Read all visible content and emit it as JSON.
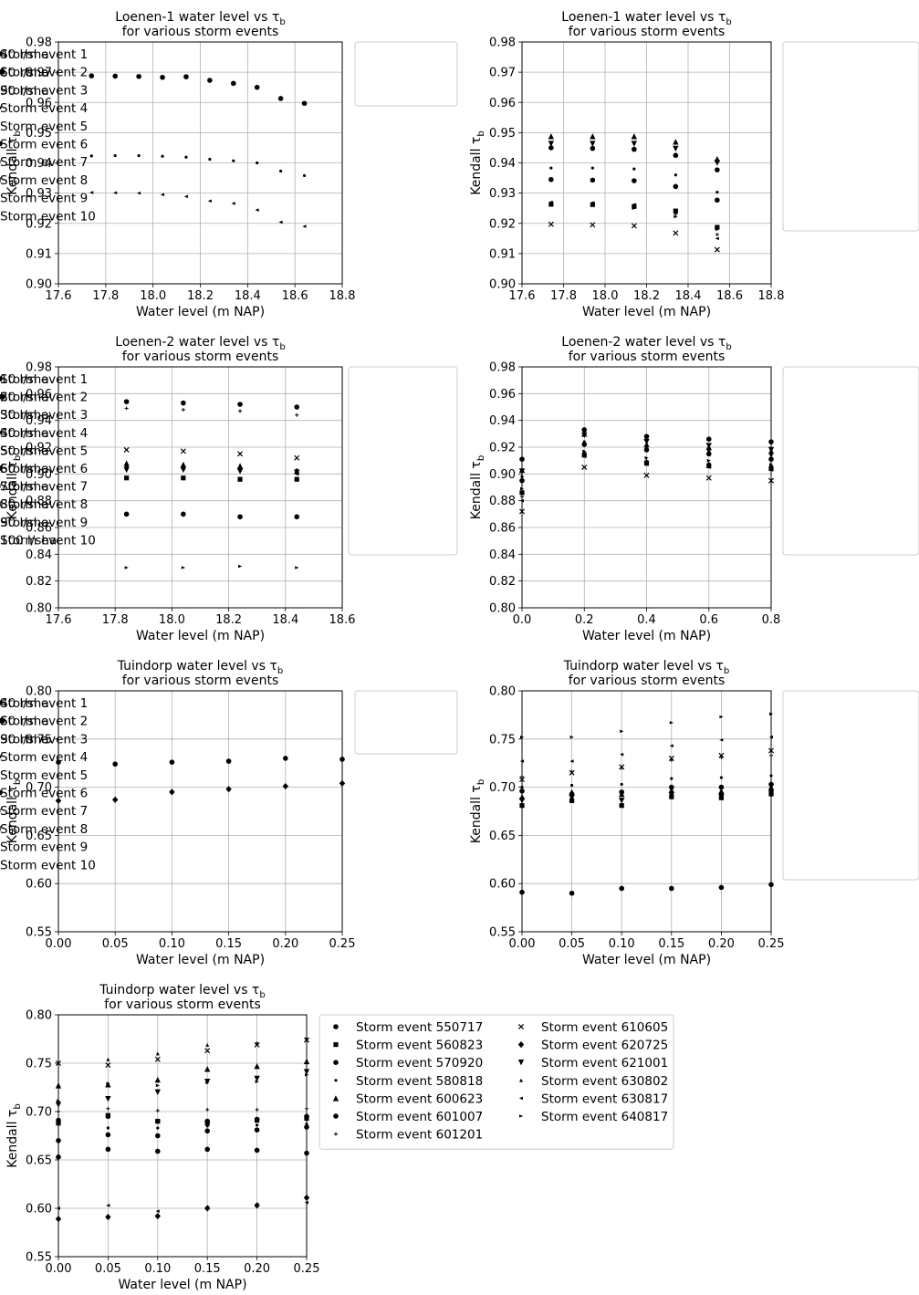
{
  "chart_data": [
    {
      "type": "scatter",
      "title": "Loenen-1 water level vs τ_b",
      "subtitle": "for various storm events",
      "xlabel": "Water level (m NAP)",
      "ylabel": "Kendall τ_b",
      "xlim": [
        17.6,
        18.8
      ],
      "ylim": [
        0.9,
        0.98
      ],
      "xticks": [
        "17.6",
        "17.8",
        "18.0",
        "18.2",
        "18.4",
        "18.6",
        "18.8"
      ],
      "yticks": [
        "0.90",
        "0.91",
        "0.92",
        "0.93",
        "0.94",
        "0.95",
        "0.96",
        "0.97",
        "0.98"
      ],
      "grid": true,
      "legend": "right",
      "series": [
        {
          "name": "40 l/sha",
          "marker": "point",
          "x": [
            17.74,
            17.84,
            17.94,
            18.04,
            18.14,
            18.24,
            18.34,
            18.44,
            18.54,
            18.64
          ],
          "y": [
            0.9423,
            0.9424,
            0.9424,
            0.9422,
            0.9419,
            0.9412,
            0.9407,
            0.94,
            0.9373,
            0.9358
          ]
        },
        {
          "name": "60 l/sha",
          "marker": "circle",
          "x": [
            17.74,
            17.84,
            17.94,
            18.04,
            18.14,
            18.24,
            18.34,
            18.44,
            18.54,
            18.64
          ],
          "y": [
            0.9688,
            0.9687,
            0.9686,
            0.9683,
            0.9685,
            0.9673,
            0.9663,
            0.965,
            0.9613,
            0.9597
          ]
        },
        {
          "name": "90 l/sha",
          "marker": "tri-left",
          "x": [
            17.74,
            17.84,
            17.94,
            18.04,
            18.14,
            18.24,
            18.34,
            18.44,
            18.54,
            18.64
          ],
          "y": [
            0.9302,
            0.9301,
            0.93,
            0.9295,
            0.9289,
            0.9274,
            0.9266,
            0.9244,
            0.9204,
            0.919
          ]
        }
      ]
    },
    {
      "type": "scatter",
      "title": "Loenen-1 water level vs τ_b",
      "subtitle": "for various storm events",
      "xlabel": "Water level (m NAP)",
      "ylabel": "Kendall τ_b",
      "xlim": [
        17.6,
        18.8
      ],
      "ylim": [
        0.9,
        0.98
      ],
      "xticks": [
        "17.6",
        "17.8",
        "18.0",
        "18.2",
        "18.4",
        "18.6",
        "18.8"
      ],
      "yticks": [
        "0.90",
        "0.91",
        "0.92",
        "0.93",
        "0.94",
        "0.95",
        "0.96",
        "0.97",
        "0.98"
      ],
      "grid": true,
      "legend": "right",
      "x": [
        17.74,
        17.94,
        18.14,
        18.34,
        18.54
      ],
      "series": [
        {
          "name": "Storm event 1",
          "marker": "circle",
          "y": [
            0.945,
            0.9448,
            0.9445,
            0.9425,
            0.9377
          ]
        },
        {
          "name": "Storm event 2",
          "marker": "square",
          "y": [
            0.9263,
            0.9262,
            0.9256,
            0.9241,
            0.9187
          ]
        },
        {
          "name": "Storm event 3",
          "marker": "tri-down",
          "y": [
            0.9463,
            0.9463,
            0.9463,
            0.9447,
            0.94
          ]
        },
        {
          "name": "Storm event 4",
          "marker": "point",
          "y": [
            0.9383,
            0.9383,
            0.938,
            0.936,
            0.9303
          ]
        },
        {
          "name": "Storm event 5",
          "marker": "tri-up",
          "y": [
            0.9488,
            0.9488,
            0.9488,
            0.947,
            0.9413
          ]
        },
        {
          "name": "Storm event 6",
          "marker": "circle",
          "y": [
            0.9345,
            0.9343,
            0.9341,
            0.9322,
            0.9277
          ]
        },
        {
          "name": "Storm event 7",
          "marker": "plus",
          "y": [
            0.9268,
            0.9266,
            0.926,
            0.923,
            0.9163
          ]
        },
        {
          "name": "Storm event 8",
          "marker": "x",
          "y": [
            0.9197,
            0.9195,
            0.9192,
            0.9168,
            0.9113
          ]
        },
        {
          "name": "Storm event 9",
          "marker": "tri-left",
          "y": [
            0.927,
            0.9268,
            0.9262,
            0.9238,
            0.915
          ]
        },
        {
          "name": "Storm event 10",
          "marker": "tri-right",
          "y": [
            0.9262,
            0.9262,
            0.925,
            0.9222,
            0.918
          ]
        }
      ]
    },
    {
      "type": "scatter",
      "title": "Loenen-2 water level vs τ_b",
      "subtitle": "for various storm events",
      "xlabel": "Water level (m NAP)",
      "ylabel": "Kendall τ_b",
      "xlim": [
        17.6,
        18.6
      ],
      "ylim": [
        0.8,
        0.98
      ],
      "xticks": [
        "17.6",
        "17.8",
        "18.0",
        "18.2",
        "18.4",
        "18.6"
      ],
      "yticks": [
        "0.80",
        "0.82",
        "0.84",
        "0.86",
        "0.88",
        "0.90",
        "0.92",
        "0.94",
        "0.96",
        "0.98"
      ],
      "grid": true,
      "legend": "right",
      "x": [
        17.84,
        18.04,
        18.24,
        18.44
      ],
      "series": [
        {
          "name": "10 l/sha",
          "marker": "circle",
          "y": [
            0.954,
            0.953,
            0.952,
            0.95
          ]
        },
        {
          "name": "20 l/sha",
          "marker": "square",
          "y": [
            0.897,
            0.897,
            0.896,
            0.896
          ]
        },
        {
          "name": "30 l/sha",
          "marker": "tri-down",
          "y": [
            0.903,
            0.903,
            0.902,
            0.901
          ]
        },
        {
          "name": "40 l/sha",
          "marker": "point",
          "y": [
            0.906,
            0.906,
            0.905,
            0.903
          ]
        },
        {
          "name": "50 l/sha",
          "marker": "tri-up",
          "y": [
            0.908,
            0.907,
            0.906,
            0.902
          ]
        },
        {
          "name": "60 l/sha",
          "marker": "circle",
          "y": [
            0.87,
            0.87,
            0.868,
            0.868
          ]
        },
        {
          "name": "70 l/sha",
          "marker": "plus",
          "y": [
            0.949,
            0.948,
            0.947,
            0.944
          ]
        },
        {
          "name": "80 l/sha",
          "marker": "x",
          "y": [
            0.918,
            0.917,
            0.915,
            0.912
          ]
        },
        {
          "name": "90 l/sha",
          "marker": "tri-left",
          "y": [
            0.905,
            0.904,
            0.903,
            0.9
          ]
        },
        {
          "name": "100 l/sha",
          "marker": "tri-right",
          "y": [
            0.83,
            0.83,
            0.831,
            0.83
          ]
        }
      ]
    },
    {
      "type": "scatter",
      "title": "Loenen-2 water level vs τ_b",
      "subtitle": "for various storm events",
      "xlabel": "Water level (m NAP)",
      "ylabel": "Kendall τ_b",
      "xlim": [
        0.0,
        0.8
      ],
      "ylim": [
        0.8,
        0.98
      ],
      "xticks": [
        "0.0",
        "0.2",
        "0.4",
        "0.6",
        "0.8"
      ],
      "yticks": [
        "0.80",
        "0.82",
        "0.84",
        "0.86",
        "0.88",
        "0.90",
        "0.92",
        "0.94",
        "0.96",
        "0.98"
      ],
      "grid": true,
      "legend": "right",
      "x": [
        0.0,
        0.2,
        0.4,
        0.6,
        0.8
      ],
      "series": [
        {
          "name": "Storm event 1",
          "marker": "circle",
          "y": [
            0.911,
            0.933,
            0.928,
            0.926,
            0.924
          ]
        },
        {
          "name": "Storm event 2",
          "marker": "square",
          "y": [
            0.886,
            0.914,
            0.908,
            0.906,
            0.904
          ]
        },
        {
          "name": "Storm event 3",
          "marker": "tri-down",
          "y": [
            0.902,
            0.929,
            0.924,
            0.921,
            0.918
          ]
        },
        {
          "name": "Storm event 4",
          "marker": "point",
          "y": [
            0.898,
            0.924,
            0.919,
            0.917,
            0.914
          ]
        },
        {
          "name": "Storm event 5",
          "marker": "tri-up",
          "y": [
            0.903,
            0.93,
            0.922,
            0.92,
            0.917
          ]
        },
        {
          "name": "Storm event 6",
          "marker": "circle",
          "y": [
            0.895,
            0.922,
            0.918,
            0.915,
            0.911
          ]
        },
        {
          "name": "Storm event 7",
          "marker": "plus",
          "y": [
            0.883,
            0.916,
            0.91,
            0.908,
            0.906
          ]
        },
        {
          "name": "Storm event 8",
          "marker": "x",
          "y": [
            0.872,
            0.905,
            0.899,
            0.897,
            0.895
          ]
        },
        {
          "name": "Storm event 9",
          "marker": "tri-left",
          "y": [
            0.88,
            0.913,
            0.907,
            0.905,
            0.903
          ]
        },
        {
          "name": "Storm event 10",
          "marker": "tri-right",
          "y": [
            0.889,
            0.917,
            0.912,
            0.91,
            0.907
          ]
        }
      ]
    },
    {
      "type": "scatter",
      "title": "Tuindorp water level vs τ_b",
      "subtitle": "for various storm events",
      "xlabel": "Water level (m NAP)",
      "ylabel": "Kendall τ_b",
      "xlim": [
        0.0,
        0.25
      ],
      "ylim": [
        0.55,
        0.8
      ],
      "xticks": [
        "0.00",
        "0.05",
        "0.10",
        "0.15",
        "0.20",
        "0.25"
      ],
      "yticks": [
        "0.55",
        "0.60",
        "0.65",
        "0.70",
        "0.75",
        "0.80"
      ],
      "grid": true,
      "legend": "right",
      "x": [
        0.0,
        0.05,
        0.1,
        0.15,
        0.2,
        0.25
      ],
      "series": [
        {
          "name": "40 l/sha",
          "marker": "point",
          "y": [
            0.727,
            0.725,
            0.727,
            0.727,
            0.73,
            0.729
          ]
        },
        {
          "name": "60 l/sha",
          "marker": "circle",
          "y": [
            0.726,
            0.724,
            0.726,
            0.727,
            0.73,
            0.729
          ]
        },
        {
          "name": "90 l/sha",
          "marker": "diamond",
          "y": [
            0.686,
            0.687,
            0.695,
            0.698,
            0.701,
            0.704
          ]
        }
      ]
    },
    {
      "type": "scatter",
      "title": "Tuindorp water level vs τ_b",
      "subtitle": "for various storm events",
      "xlabel": "Water level (m NAP)",
      "ylabel": "Kendall τ_b",
      "xlim": [
        0.0,
        0.25
      ],
      "ylim": [
        0.55,
        0.8
      ],
      "xticks": [
        "0.00",
        "0.05",
        "0.10",
        "0.15",
        "0.20",
        "0.25"
      ],
      "yticks": [
        "0.55",
        "0.60",
        "0.65",
        "0.70",
        "0.75",
        "0.80"
      ],
      "grid": true,
      "legend": "right",
      "x": [
        0.0,
        0.05,
        0.1,
        0.15,
        0.2,
        0.25
      ],
      "series": [
        {
          "name": "Storm event 1",
          "marker": "circle",
          "y": [
            0.696,
            0.693,
            0.695,
            0.7,
            0.7,
            0.703
          ]
        },
        {
          "name": "Storm event 2",
          "marker": "square",
          "y": [
            0.681,
            0.686,
            0.681,
            0.69,
            0.689,
            0.693
          ]
        },
        {
          "name": "Storm event 3",
          "marker": "tri-down",
          "y": [
            0.686,
            0.689,
            0.686,
            0.692,
            0.69,
            0.694
          ]
        },
        {
          "name": "Storm event 4",
          "marker": "point",
          "y": [
            0.7,
            0.702,
            0.703,
            0.709,
            0.71,
            0.712
          ]
        },
        {
          "name": "Storm event 5",
          "marker": "tri-up",
          "y": [
            0.69,
            0.695,
            0.693,
            0.697,
            0.696,
            0.7
          ]
        },
        {
          "name": "Storm event 6",
          "marker": "circle",
          "y": [
            0.591,
            0.59,
            0.595,
            0.595,
            0.596,
            0.599
          ]
        },
        {
          "name": "Storm event 7",
          "marker": "plus",
          "y": [
            0.711,
            0.716,
            0.72,
            0.728,
            0.731,
            0.733
          ]
        },
        {
          "name": "Storm event 8",
          "marker": "x",
          "y": [
            0.708,
            0.715,
            0.721,
            0.73,
            0.733,
            0.738
          ]
        },
        {
          "name": "Storm event 9",
          "marker": "tri-left",
          "y": [
            0.727,
            0.727,
            0.734,
            0.743,
            0.749,
            0.752
          ]
        },
        {
          "name": "Storm event 10",
          "marker": "tri-right",
          "y": [
            0.752,
            0.752,
            0.758,
            0.767,
            0.773,
            0.776
          ]
        }
      ]
    },
    {
      "type": "scatter",
      "title": "Tuindorp water level vs τ_b",
      "subtitle": "for various storm events",
      "xlabel": "Water level (m NAP)",
      "ylabel": "Kendall τ_b",
      "xlim": [
        0.0,
        0.25
      ],
      "ylim": [
        0.55,
        0.8
      ],
      "xticks": [
        "0.00",
        "0.05",
        "0.10",
        "0.15",
        "0.20",
        "0.25"
      ],
      "yticks": [
        "0.55",
        "0.60",
        "0.65",
        "0.70",
        "0.75",
        "0.80"
      ],
      "grid": true,
      "legend": "right, two columns",
      "x": [
        0.0,
        0.05,
        0.1,
        0.15,
        0.2,
        0.25
      ],
      "series": [
        {
          "name": "Storm event 550717",
          "marker": "circle",
          "y": [
            0.691,
            0.695,
            0.69,
            0.69,
            0.692,
            0.695
          ]
        },
        {
          "name": "Storm event 560823",
          "marker": "square",
          "y": [
            0.688,
            0.696,
            0.69,
            0.688,
            0.691,
            0.693
          ]
        },
        {
          "name": "Storm event 570920",
          "marker": "circle",
          "y": [
            0.653,
            0.661,
            0.659,
            0.661,
            0.66,
            0.657
          ]
        },
        {
          "name": "Storm event 580818",
          "marker": "point",
          "y": [
            0.671,
            0.683,
            0.683,
            0.685,
            0.686,
            0.687
          ]
        },
        {
          "name": "Storm event 600623",
          "marker": "tri-up",
          "y": [
            0.727,
            0.728,
            0.733,
            0.744,
            0.747,
            0.752
          ]
        },
        {
          "name": "Storm event 601007",
          "marker": "circle",
          "y": [
            0.67,
            0.676,
            0.675,
            0.68,
            0.681,
            0.684
          ]
        },
        {
          "name": "Storm event 601201",
          "marker": "plus",
          "y": [
            0.7,
            0.703,
            0.701,
            0.702,
            0.702,
            0.703
          ]
        },
        {
          "name": "Storm event 610605",
          "marker": "x",
          "y": [
            0.75,
            0.748,
            0.754,
            0.763,
            0.769,
            0.774
          ]
        },
        {
          "name": "Storm event 620725",
          "marker": "diamond",
          "y": [
            0.589,
            0.591,
            0.592,
            0.6,
            0.603,
            0.611
          ]
        },
        {
          "name": "Storm event 621001",
          "marker": "tri-down",
          "y": [
            0.707,
            0.713,
            0.72,
            0.731,
            0.734,
            0.741
          ]
        },
        {
          "name": "Storm event 630802",
          "marker": "tri-up-small",
          "y": [
            0.728,
            0.754,
            0.76,
            0.769,
            0.771,
            0.776
          ]
        },
        {
          "name": "Storm event 630817",
          "marker": "tri-left",
          "y": [
            0.6,
            0.603,
            0.597,
            0.601,
            0.604,
            0.606
          ]
        },
        {
          "name": "Storm event 640817",
          "marker": "tri-right",
          "y": [
            0.711,
            0.729,
            0.727,
            0.73,
            0.731,
            0.738
          ]
        }
      ]
    }
  ]
}
